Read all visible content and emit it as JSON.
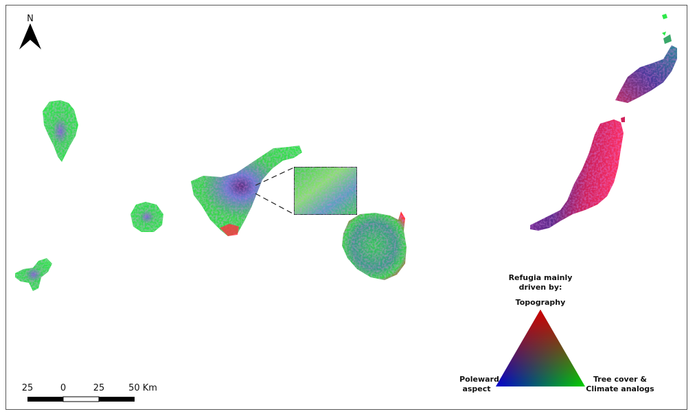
{
  "north_arrow": {
    "label": "N"
  },
  "scale_bar": {
    "ticks": [
      "25",
      "0",
      "25",
      "50 Km"
    ]
  },
  "legend": {
    "title_line1": "Refugia mainly",
    "title_line2": "driven by:",
    "top": "Topography",
    "left_line1": "Poleward",
    "left_line2": "aspect",
    "right_line1": "Tree cover &",
    "right_line2": "Climate analogs",
    "colors": {
      "top": "#ff0000",
      "left": "#0000ff",
      "right": "#00ff00"
    }
  },
  "palette": {
    "green": "#2ee84a",
    "magenta": "#d6205a",
    "purple": "#5a3a9a",
    "red": "#ff2a2a"
  }
}
